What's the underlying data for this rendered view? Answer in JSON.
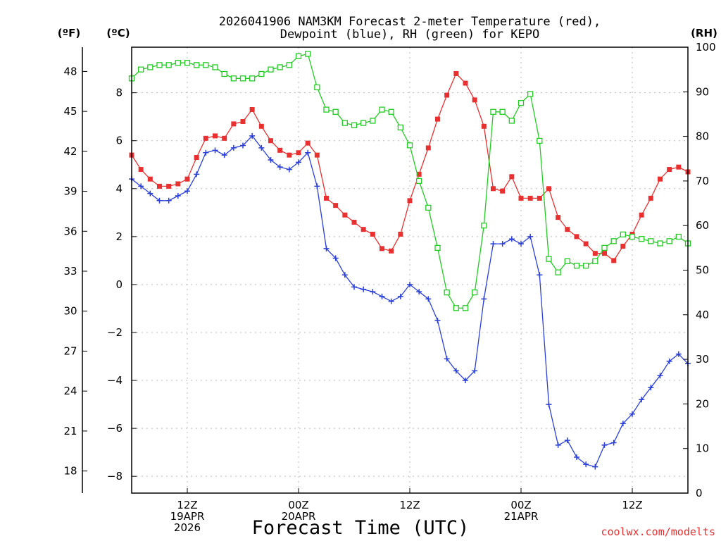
{
  "chart_data": {
    "type": "line",
    "title_line1": "2026041906 NAM3KM Forecast 2-meter Temperature (red),",
    "title_line2": "Dewpoint (blue), RH (green) for KEPO",
    "xlabel": "Forecast Time (UTC)",
    "credit": "coolwx.com/modelts",
    "unit_f": "(ºF)",
    "unit_c": "(ºC)",
    "unit_rh": "(RH)",
    "x_hours_from_06z_19apr": [
      0,
      1,
      2,
      3,
      4,
      5,
      6,
      7,
      8,
      9,
      10,
      11,
      12,
      13,
      14,
      15,
      16,
      17,
      18,
      19,
      20,
      21,
      22,
      23,
      24,
      25,
      26,
      27,
      28,
      29,
      30,
      31,
      32,
      33,
      34,
      35,
      36,
      37,
      38,
      39,
      40,
      41,
      42,
      43,
      44,
      45,
      46,
      47,
      48,
      49,
      50,
      51,
      52,
      53,
      54,
      55,
      56,
      57,
      58,
      59,
      60
    ],
    "xlim_hours": [
      0,
      60
    ],
    "c_axis": {
      "range": [
        -8.7,
        9.9
      ],
      "ticks": [
        -8,
        -6,
        -4,
        -2,
        0,
        2,
        4,
        6,
        8
      ],
      "labels": [
        "−8",
        "−6",
        "−4",
        "−2",
        "0",
        "2",
        "4",
        "6",
        "8"
      ]
    },
    "f_axis": {
      "ticks": [
        18,
        21,
        24,
        27,
        30,
        33,
        36,
        39,
        42,
        45,
        48
      ],
      "labels": [
        "18",
        "21",
        "24",
        "27",
        "30",
        "33",
        "36",
        "39",
        "42",
        "45",
        "48"
      ]
    },
    "rh_axis": {
      "range": [
        0,
        100
      ],
      "ticks": [
        0,
        10,
        20,
        30,
        40,
        50,
        60,
        70,
        80,
        90,
        100
      ],
      "labels": [
        "0",
        "10",
        "20",
        "30",
        "40",
        "50",
        "60",
        "70",
        "80",
        "90",
        "100"
      ]
    },
    "x_ticks": [
      {
        "hour": 6,
        "labels": [
          "12Z",
          "19APR",
          "2026"
        ]
      },
      {
        "hour": 18,
        "labels": [
          "00Z",
          "20APR"
        ]
      },
      {
        "hour": 30,
        "labels": [
          "12Z"
        ]
      },
      {
        "hour": 42,
        "labels": [
          "00Z",
          "21APR"
        ]
      },
      {
        "hour": 54,
        "labels": [
          "12Z"
        ]
      }
    ],
    "series": [
      {
        "name": "Temperature (C)",
        "color": "#e83030",
        "marker": "filled-square",
        "axis": "c",
        "values": [
          5.4,
          4.8,
          4.4,
          4.1,
          4.1,
          4.2,
          4.4,
          5.3,
          6.1,
          6.2,
          6.1,
          6.7,
          6.8,
          7.3,
          6.6,
          6.0,
          5.6,
          5.4,
          5.5,
          5.9,
          5.4,
          3.6,
          3.3,
          2.9,
          2.6,
          2.3,
          2.1,
          1.5,
          1.4,
          2.1,
          3.5,
          4.6,
          5.7,
          6.9,
          7.9,
          8.8,
          8.4,
          7.7,
          6.6,
          4.0,
          3.9,
          4.5,
          3.6,
          3.6,
          3.6,
          4.0,
          2.8,
          2.3,
          2.0,
          1.7,
          1.3,
          1.3,
          1.0,
          1.6,
          2.1,
          2.9,
          3.6,
          4.4,
          4.8,
          4.9,
          4.7
        ]
      },
      {
        "name": "Dewpoint (C)",
        "color": "#2a3fd8",
        "marker": "plus",
        "axis": "c",
        "values": [
          4.4,
          4.1,
          3.8,
          3.5,
          3.5,
          3.7,
          3.9,
          4.6,
          5.5,
          5.6,
          5.4,
          5.7,
          5.8,
          6.2,
          5.7,
          5.2,
          4.9,
          4.8,
          5.1,
          5.5,
          4.1,
          1.5,
          1.1,
          0.4,
          -0.1,
          -0.2,
          -0.3,
          -0.5,
          -0.7,
          -0.5,
          0.0,
          -0.3,
          -0.6,
          -1.5,
          -3.1,
          -3.6,
          -4.0,
          -3.6,
          -0.6,
          1.7,
          1.7,
          1.9,
          1.7,
          2.0,
          0.4,
          -5.0,
          -6.7,
          -6.5,
          -7.2,
          -7.5,
          -7.6,
          -6.7,
          -6.6,
          -5.8,
          -5.4,
          -4.8,
          -4.3,
          -3.8,
          -3.2,
          -2.9,
          -3.3
        ]
      },
      {
        "name": "RH (%)",
        "color": "#22cc22",
        "marker": "open-square",
        "axis": "rh",
        "values": [
          93,
          95,
          95.5,
          96,
          96,
          96.5,
          96.5,
          96,
          96,
          95.5,
          94,
          93,
          93,
          93,
          94,
          95,
          95.5,
          96,
          98,
          98.5,
          91,
          86,
          85.5,
          83,
          82.5,
          83,
          83.5,
          86,
          85.5,
          82,
          78,
          70,
          64,
          55,
          45,
          41.5,
          41.5,
          45,
          60,
          85.5,
          85.5,
          83.5,
          87.5,
          89.5,
          79,
          52.5,
          49.5,
          52,
          51,
          51,
          52,
          55,
          56.5,
          58,
          57.5,
          57,
          56.5,
          56,
          56.5,
          57.5,
          56
        ]
      }
    ]
  }
}
